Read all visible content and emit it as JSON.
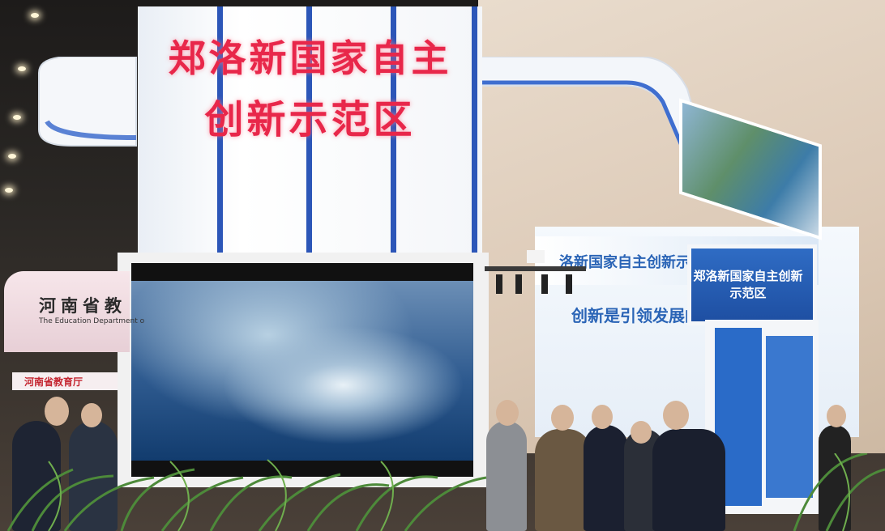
{
  "booth": {
    "tower_title_line1": "郑洛新国家自主",
    "tower_title_line2": "创新示范区",
    "banner_text": "洛新国家自主创新示范",
    "slogan": "创新是引领发展的第",
    "kiosk_text": "郑洛新国家自主创新示范区"
  },
  "left_booth": {
    "sign_text": "河南省教",
    "sign_english": "The Education Department o",
    "small_sign_text": "河南省教育厅"
  },
  "colors": {
    "title_red": "#e8274a",
    "booth_blue": "#2c56b8",
    "sky_blue": "#2a64b6"
  }
}
